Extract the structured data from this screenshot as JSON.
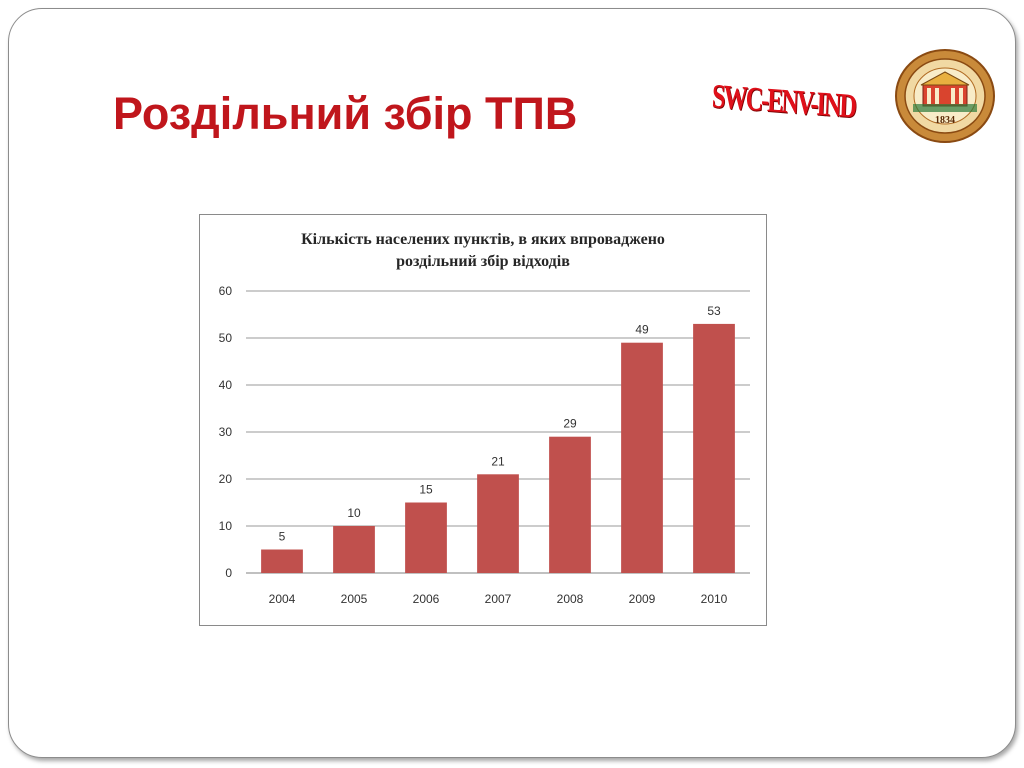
{
  "slide": {
    "title": "Роздільний збір ТПВ",
    "logo_text": "SWC-ENV-IND",
    "seal_year": "1834"
  },
  "colors": {
    "title": "#c0161c",
    "bar": "#c0504d",
    "logo": "#e0101a"
  },
  "chart_data": {
    "type": "bar",
    "title_line1": "Кількість населених пунктів, в яких впроваджено",
    "title_line2": "роздільний збір відходів",
    "categories": [
      "2004",
      "2005",
      "2006",
      "2007",
      "2008",
      "2009",
      "2010"
    ],
    "values": [
      5,
      10,
      15,
      21,
      29,
      49,
      53
    ],
    "ylim": [
      0,
      60
    ],
    "yticks": [
      0,
      10,
      20,
      30,
      40,
      50,
      60
    ],
    "grid": true,
    "data_labels": true
  }
}
